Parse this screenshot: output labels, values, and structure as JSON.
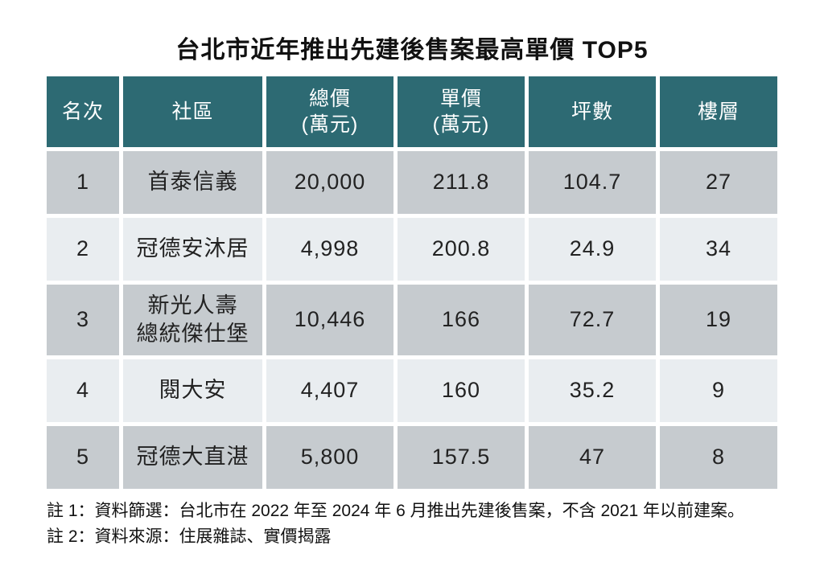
{
  "page": {
    "title": "台北市近年推出先建後售案最高單價 TOP5",
    "notes": {
      "note1": "註 1：資料篩選：台北市在 2022 年至 2024 年 6 月推出先建後售案，不含 2021 年以前建案。",
      "note2": "註 2：資料來源：住展雜誌、實價揭露"
    }
  },
  "colors": {
    "header_bg": "#2d6a73",
    "header_text": "#ffffff",
    "row_odd_bg": "#c6cbcf",
    "row_even_bg": "#e9edf0",
    "body_text": "#222222",
    "page_bg": "#ffffff"
  },
  "chart_data": {
    "type": "table",
    "title": "台北市近年推出先建後售案最高單價 TOP5",
    "columns": [
      "名次",
      "社區",
      "總價\n(萬元)",
      "單價\n(萬元)",
      "坪數",
      "樓層"
    ],
    "rows": [
      [
        "1",
        "首泰信義",
        "20,000",
        "211.8",
        "104.7",
        "27"
      ],
      [
        "2",
        "冠德安沐居",
        "4,998",
        "200.8",
        "24.9",
        "34"
      ],
      [
        "3",
        "新光人壽\n總統傑仕堡",
        "10,446",
        "166",
        "72.7",
        "19"
      ],
      [
        "4",
        "閱大安",
        "4,407",
        "160",
        "35.2",
        "9"
      ],
      [
        "5",
        "冠德大直湛",
        "5,800",
        "157.5",
        "47",
        "8"
      ]
    ],
    "notes": [
      "註 1：資料篩選：台北市在 2022 年至 2024 年 6 月推出先建後售案，不含 2021 年以前建案。",
      "註 2：資料來源：住展雜誌、實價揭露"
    ]
  }
}
